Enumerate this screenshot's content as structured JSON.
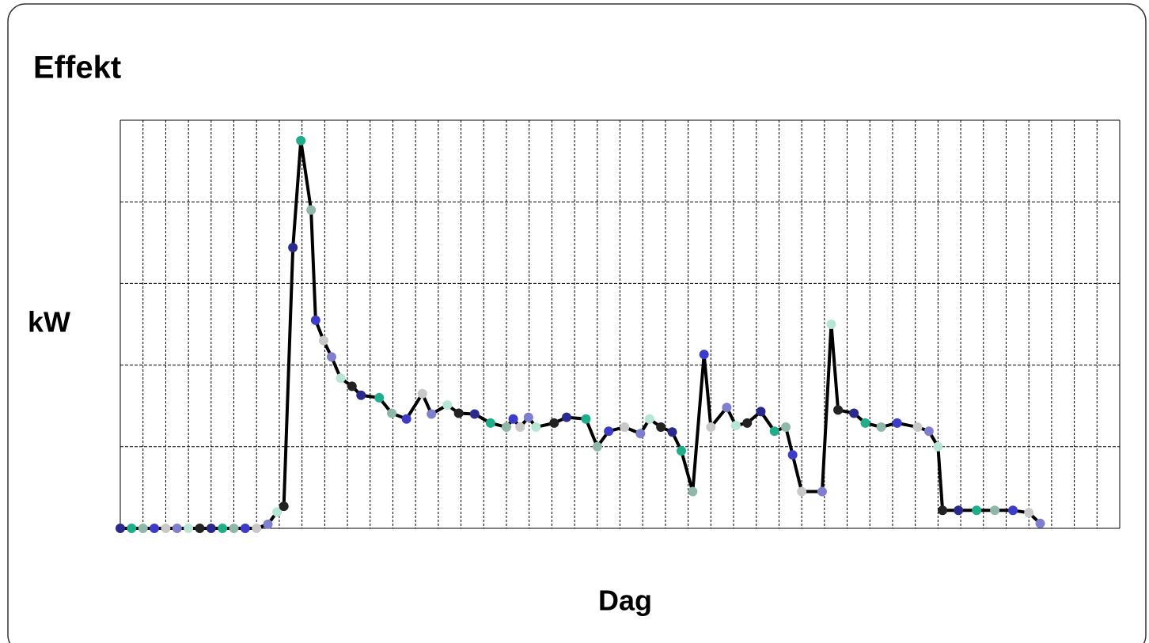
{
  "chart_data": {
    "type": "line",
    "title": "Effekt",
    "ylabel": "kW",
    "xlabel": "Dag",
    "x": [
      0,
      0.5,
      1,
      1.5,
      2,
      2.5,
      3,
      3.5,
      4,
      4.5,
      5,
      5.5,
      6,
      6.5,
      6.9,
      7.2,
      7.6,
      7.95,
      8.4,
      8.6,
      8.95,
      9.3,
      9.7,
      10.2,
      10.6,
      11.4,
      11.95,
      12.6,
      13.3,
      13.7,
      14.4,
      14.9,
      15.6,
      16.3,
      17,
      17.3,
      17.6,
      17.97,
      18.3,
      19.1,
      19.65,
      20.5,
      21,
      21.5,
      22.2,
      22.9,
      23.3,
      23.8,
      24.3,
      24.7,
      25.2,
      25.7,
      26,
      26.7,
      27.1,
      27.6,
      28.2,
      28.8,
      29.3,
      29.6,
      30,
      30.9,
      31.3,
      31.6,
      32.3,
      32.8,
      33.5,
      34.2,
      35.1,
      35.6,
      36,
      36.2,
      36.9,
      37.7,
      38.5,
      39.3,
      40,
      40.5
    ],
    "series": [
      {
        "color": "#000000",
        "values": [
          0,
          0,
          0,
          0,
          0,
          0,
          0,
          0,
          0,
          0,
          0,
          0,
          0,
          0.05,
          0.2,
          0.27,
          3.44,
          4.75,
          3.9,
          2.55,
          2.3,
          2.1,
          1.84,
          1.74,
          1.63,
          1.6,
          1.41,
          1.34,
          1.65,
          1.4,
          1.51,
          1.41,
          1.4,
          1.29,
          1.24,
          1.34,
          1.24,
          1.36,
          1.24,
          1.29,
          1.36,
          1.34,
          1.0,
          1.19,
          1.24,
          1.16,
          1.34,
          1.24,
          1.18,
          0.95,
          0.45,
          2.13,
          1.24,
          1.48,
          1.26,
          1.29,
          1.43,
          1.19,
          1.24,
          0.9,
          0.45,
          0.45,
          2.5,
          1.45,
          1.41,
          1.29,
          1.24,
          1.29,
          1.24,
          1.19,
          1.0,
          0.22,
          0.22,
          0.22,
          0.22,
          0.22,
          0.19,
          0.06
        ]
      }
    ],
    "marker_colors": [
      "#2a2a8c",
      "#1fae8a",
      "#8fb8a8",
      "#3c3cc8",
      "#c8c8c8",
      "#7f7fd0",
      "#b8e6d6",
      "#222222"
    ],
    "xlim": [
      0,
      44
    ],
    "ylim": [
      0,
      5
    ],
    "xticks": [
      0,
      1,
      2,
      3,
      4,
      5,
      6,
      7,
      8,
      9,
      10,
      11,
      12,
      13,
      14,
      15,
      16,
      17,
      18,
      19,
      20,
      21,
      22,
      23,
      24,
      25,
      26,
      27,
      28,
      29,
      30,
      31,
      32,
      33,
      34,
      35,
      36,
      37,
      38,
      39,
      40,
      41,
      42,
      43,
      44
    ],
    "yticks": [
      0,
      1,
      2,
      3,
      4,
      5
    ],
    "grid": true
  }
}
